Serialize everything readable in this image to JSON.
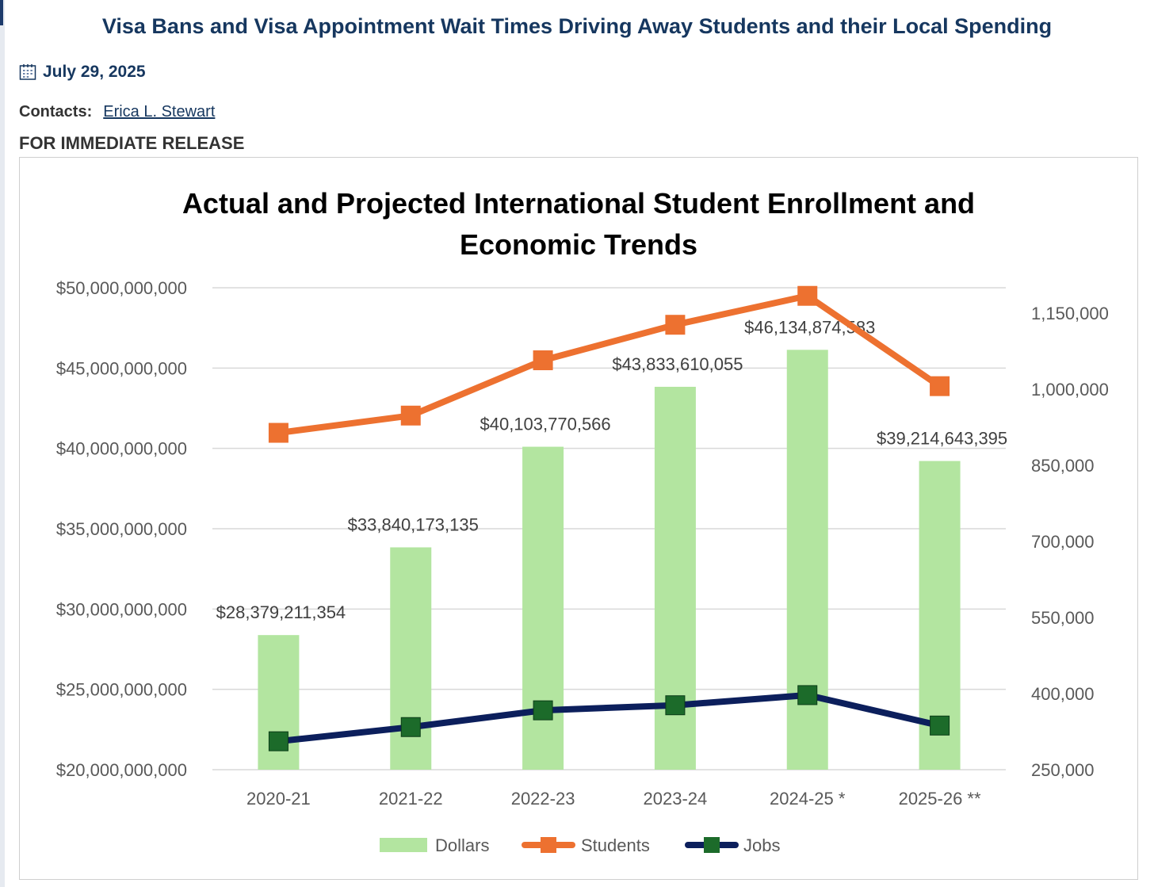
{
  "page": {
    "title": "Visa Bans and Visa Appointment Wait Times Driving Away Students and their Local Spending",
    "date": "July 29, 2025",
    "contacts_label": "Contacts:",
    "contact_name": "Erica L. Stewart",
    "release": "FOR IMMEDIATE RELEASE"
  },
  "chart_data": {
    "type": "bar+line",
    "title": "Actual and Projected International Student Enrollment and Economic Trends",
    "title_lines": [
      "Actual and Projected International Student Enrollment and",
      "Economic Trends"
    ],
    "categories": [
      "2020-21",
      "2021-22",
      "2022-23",
      "2023-24",
      "2024-25 *",
      "2025-26 **"
    ],
    "left_axis": {
      "range": [
        20000000000,
        50000000000
      ],
      "ticks": [
        "$20,000,000,000",
        "$25,000,000,000",
        "$30,000,000,000",
        "$35,000,000,000",
        "$40,000,000,000",
        "$45,000,000,000",
        "$50,000,000,000"
      ]
    },
    "right_axis": {
      "range": [
        250000,
        1200000
      ],
      "ticks": [
        "250,000",
        "400,000",
        "550,000",
        "700,000",
        "850,000",
        "1,000,000",
        "1,150,000"
      ]
    },
    "series": [
      {
        "name": "Dollars",
        "type": "bar",
        "axis": "left",
        "color": "#b3e5a0",
        "values": [
          28379211354,
          33840173135,
          40103770566,
          43833610055,
          46134874583,
          39214643395
        ],
        "labels": [
          "$28,379,211,354",
          "$33,840,173,135",
          "$40,103,770,566",
          "$43,833,610,055",
          "$46,134,874,583",
          "$39,214,643,395"
        ]
      },
      {
        "name": "Students",
        "type": "line",
        "axis": "right",
        "color": "#ed7130",
        "values": [
          914000,
          948000,
          1057000,
          1127000,
          1184000,
          1006000
        ]
      },
      {
        "name": "Jobs",
        "type": "line",
        "axis": "right",
        "color": "#0c1f5c",
        "marker": "#1c6b2a",
        "values": [
          306000,
          334000,
          367000,
          377000,
          397000,
          337000
        ]
      }
    ],
    "legend": "bottom",
    "grid": true
  }
}
